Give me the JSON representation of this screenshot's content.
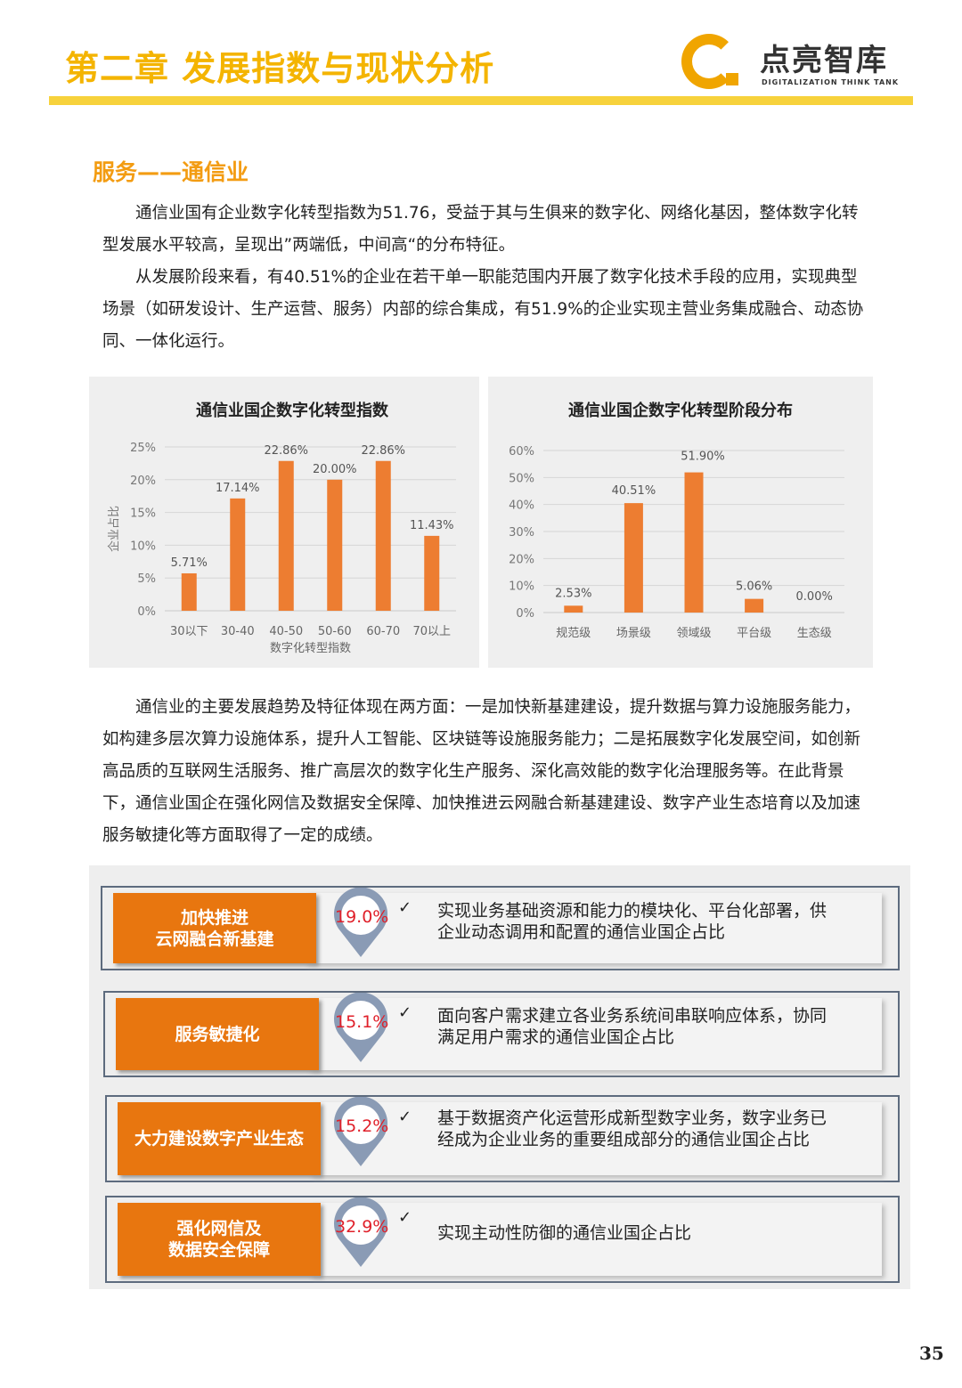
{
  "header": {
    "title": "第二章  发展指数与现状分析",
    "logo_cn": "点亮智库",
    "logo_en": "DIGITALIZATION THINK TANK"
  },
  "section_title": "服务——通信业",
  "intro": [
    "通信业国有企业数字化转型指数为51.76，受益于其与生俱来的数字化、网络化基因，整体数字化转型发展水平较高，呈现出”两端低，中间高“的分布特征。",
    "从发展阶段来看，有40.51%的企业在若干单一职能范围内开展了数字化技术手段的应用，实现典型场景（如研发设计、生产运营、服务）内部的综合集成，有51.9%的企业实现主营业务集成融合、动态协同、一体化运行。"
  ],
  "trend": "通信业的主要发展趋势及特征体现在两方面：一是加快新基建建设，提升数据与算力设施服务能力，如构建多层次算力设施体系，提升人工智能、区块链等设施服务能力；二是拓展数字化发展空间，如创新高品质的互联网生活服务、推广高层次的数字化生产服务、深化高效能的数字化治理服务等。在此背景下，通信业国企在强化网信及数据安全保障、加快推进云网融合新基建建设、数字产业生态培育以及加速服务敏捷化等方面取得了一定的成绩。",
  "chart_data": [
    {
      "type": "bar",
      "title": "通信业国企数字化转型指数",
      "xlabel": "数字化转型指数",
      "ylabel": "企业占比",
      "categories": [
        "30以下",
        "30-40",
        "40-50",
        "50-60",
        "60-70",
        "70以上"
      ],
      "values": [
        5.71,
        17.14,
        22.86,
        20.0,
        22.86,
        11.43
      ],
      "data_labels": [
        "5.71%",
        "17.14%",
        "22.86%",
        "20.00%",
        "22.86%",
        "11.43%"
      ],
      "ylim": [
        0,
        25
      ],
      "yticks": [
        "0%",
        "5%",
        "10%",
        "15%",
        "20%",
        "25%"
      ],
      "grid": true,
      "color": "#ed7d31"
    },
    {
      "type": "bar",
      "title": "通信业国企数字化转型阶段分布",
      "xlabel": "",
      "ylabel": "",
      "categories": [
        "规范级",
        "场景级",
        "领域级",
        "平台级",
        "生态级"
      ],
      "values": [
        2.53,
        40.51,
        51.9,
        5.06,
        0.0
      ],
      "data_labels": [
        "2.53%",
        "40.51%",
        "51.90%",
        "5.06%",
        "0.00%"
      ],
      "ylim": [
        0,
        60
      ],
      "yticks": [
        "0%",
        "10%",
        "20%",
        "30%",
        "40%",
        "50%",
        "60%"
      ],
      "grid": true,
      "color": "#ed7d31"
    }
  ],
  "achievements": [
    {
      "label": "加快推进\n云网融合新基建",
      "percent": "19.0%",
      "description": "实现业务基础资源和能力的模块化、平台化部署，供企业动态调用和配置的通信业国企占比"
    },
    {
      "label": "服务敏捷化",
      "percent": "15.1%",
      "description": "面向客户需求建立各业务系统间串联响应体系，协同满足用户需求的通信业国企占比"
    },
    {
      "label": "大力建设数字产业生态",
      "percent": "15.2%",
      "description": "基于数据资产化运营形成新型数字业务，数字业务已经成为企业业务的重要组成部分的通信业国企占比"
    },
    {
      "label": "强化网信及\n数据安全保障",
      "percent": "32.9%",
      "description": "实现主动性防御的通信业国企占比"
    }
  ],
  "check_glyph": "✓",
  "page_number": "35",
  "colors": {
    "accent": "#f39c12",
    "bar": "#ed7d31",
    "label_bg": "#e8760f",
    "percent": "#e0202a",
    "pin": "#8a9bb5"
  }
}
